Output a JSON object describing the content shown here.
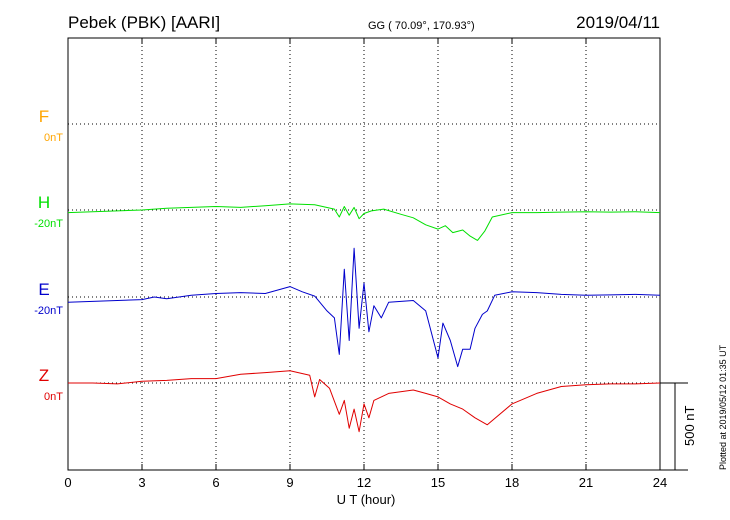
{
  "header": {
    "station": "Pebek (PBK)  [AARI]",
    "coords": "GG ( 70.09°, 170.93°)",
    "date": "2019/04/11"
  },
  "plot_note": "Plotted at 2019/05/12 01:35 UT",
  "chart_data": {
    "type": "line",
    "xlabel": "U T (hour)",
    "xlim": [
      0,
      24
    ],
    "xticks": [
      "0",
      "3",
      "6",
      "9",
      "12",
      "15",
      "18",
      "21",
      "24"
    ],
    "scale_bar": "500 nT",
    "colors": {
      "F": "#ffa500",
      "H": "#00e000",
      "E": "#0000cc",
      "Z": "#e00000"
    },
    "series": [
      {
        "name": "F",
        "baseline": "0nT",
        "x": [],
        "y": []
      },
      {
        "name": "H",
        "baseline": "-20nT",
        "x": [
          0,
          1,
          2,
          3,
          4,
          5,
          6,
          7,
          8,
          9,
          10,
          10.8,
          11,
          11.2,
          11.4,
          11.6,
          11.8,
          12,
          12.3,
          12.8,
          13.5,
          14,
          14.5,
          15,
          15.3,
          15.6,
          16,
          16.3,
          16.6,
          16.9,
          17.2,
          18,
          19,
          20,
          21,
          22,
          23,
          24
        ],
        "y": [
          -15,
          -10,
          -5,
          0,
          10,
          15,
          20,
          15,
          25,
          35,
          30,
          5,
          -40,
          20,
          -30,
          15,
          -50,
          -20,
          -5,
          5,
          -25,
          -45,
          -85,
          -110,
          -90,
          -130,
          -115,
          -150,
          -175,
          -120,
          -40,
          -15,
          -15,
          -12,
          -10,
          -12,
          -10,
          -15
        ]
      },
      {
        "name": "E",
        "baseline": "-20nT",
        "x": [
          0,
          1,
          2,
          3,
          3.5,
          4,
          5,
          6,
          7,
          8,
          9,
          9.5,
          10,
          10.5,
          10.8,
          11,
          11.2,
          11.4,
          11.6,
          11.8,
          12,
          12.2,
          12.4,
          12.7,
          13,
          14,
          14.5,
          15,
          15.2,
          15.5,
          15.8,
          16,
          16.3,
          16.5,
          16.8,
          17,
          17.3,
          18,
          19,
          20,
          21,
          22,
          23,
          24
        ],
        "y": [
          -30,
          -25,
          -20,
          -15,
          0,
          -10,
          10,
          20,
          25,
          20,
          60,
          30,
          5,
          -80,
          -120,
          -330,
          160,
          -250,
          280,
          -180,
          80,
          -200,
          -50,
          -120,
          -30,
          -20,
          -80,
          -350,
          -150,
          -250,
          -400,
          -300,
          -300,
          -180,
          -100,
          -80,
          10,
          30,
          25,
          15,
          10,
          12,
          15,
          10
        ]
      },
      {
        "name": "Z",
        "baseline": "0nT",
        "x": [
          0,
          1,
          2,
          3,
          4,
          5,
          6,
          7,
          8,
          9,
          9.8,
          10,
          10.2,
          10.6,
          11,
          11.2,
          11.4,
          11.6,
          11.8,
          12,
          12.2,
          12.4,
          12.7,
          13,
          14,
          14.5,
          15,
          15.5,
          16,
          16.5,
          17,
          18,
          19,
          20,
          21,
          22,
          23,
          24
        ],
        "y": [
          0,
          0,
          -5,
          10,
          15,
          25,
          25,
          50,
          60,
          70,
          45,
          -80,
          20,
          -30,
          -180,
          -100,
          -260,
          -150,
          -280,
          -120,
          -200,
          -100,
          -80,
          -60,
          -40,
          -60,
          -80,
          -120,
          -150,
          -200,
          -240,
          -120,
          -60,
          -20,
          -10,
          -5,
          -5,
          0
        ]
      }
    ]
  }
}
